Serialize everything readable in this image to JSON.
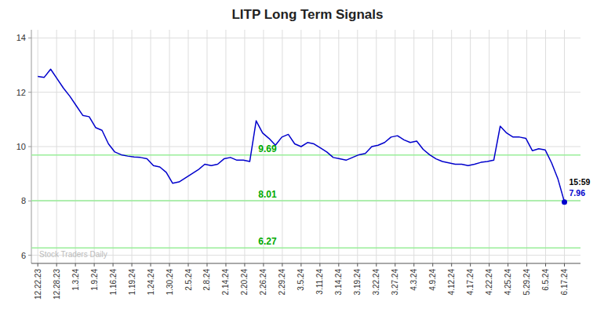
{
  "chart_data": {
    "type": "line",
    "title": "LITP Long Term Signals",
    "color": "#0000cc",
    "marker": "circle",
    "grid": true,
    "values": [
      12.58,
      12.55,
      12.85,
      12.5,
      12.15,
      11.85,
      11.5,
      11.15,
      11.1,
      10.7,
      10.6,
      10.1,
      9.8,
      9.7,
      9.65,
      9.62,
      9.6,
      9.55,
      9.3,
      9.25,
      9.05,
      8.65,
      8.7,
      8.85,
      9.0,
      9.15,
      9.35,
      9.3,
      9.35,
      9.55,
      9.6,
      9.5,
      9.5,
      9.45,
      10.95,
      10.5,
      10.3,
      10.05,
      10.35,
      10.45,
      10.1,
      10.0,
      10.15,
      10.1,
      9.95,
      9.8,
      9.6,
      9.55,
      9.5,
      9.6,
      9.7,
      9.75,
      10.0,
      10.05,
      10.15,
      10.35,
      10.4,
      10.25,
      10.15,
      10.2,
      9.9,
      9.7,
      9.55,
      9.45,
      9.4,
      9.35,
      9.35,
      9.3,
      9.35,
      9.42,
      9.45,
      9.5,
      10.75,
      10.5,
      10.35,
      10.35,
      10.3,
      9.85,
      9.92,
      9.88,
      9.4,
      8.8,
      7.96
    ],
    "xlim": [
      -1,
      84.5
    ],
    "xticks": [
      {
        "value": 0,
        "label": "12.22.23"
      },
      {
        "value": 2.928571,
        "label": "12.28.23"
      },
      {
        "value": 5.857143,
        "label": "1.3.24"
      },
      {
        "value": 8.785714,
        "label": "1.9.24"
      },
      {
        "value": 11.714286,
        "label": "1.16.24"
      },
      {
        "value": 14.642857,
        "label": "1.19.24"
      },
      {
        "value": 17.571429,
        "label": "1.24.24"
      },
      {
        "value": 20.5,
        "label": "1.30.24"
      },
      {
        "value": 23.428571,
        "label": "2.5.24"
      },
      {
        "value": 26.357143,
        "label": "2.8.24"
      },
      {
        "value": 29.285714,
        "label": "2.14.24"
      },
      {
        "value": 32.214286,
        "label": "2.20.24"
      },
      {
        "value": 35.142857,
        "label": "2.26.24"
      },
      {
        "value": 38.071429,
        "label": "2.29.24"
      },
      {
        "value": 41,
        "label": "3.5.24"
      },
      {
        "value": 43.928571,
        "label": "3.11.24"
      },
      {
        "value": 46.857143,
        "label": "3.14.24"
      },
      {
        "value": 49.785714,
        "label": "3.19.24"
      },
      {
        "value": 52.714286,
        "label": "3.22.24"
      },
      {
        "value": 55.642857,
        "label": "3.27.24"
      },
      {
        "value": 58.571429,
        "label": "4.3.24"
      },
      {
        "value": 61.5,
        "label": "4.9.24"
      },
      {
        "value": 64.428571,
        "label": "4.12.24"
      },
      {
        "value": 67.357143,
        "label": "4.17.24"
      },
      {
        "value": 70.285714,
        "label": "4.22.24"
      },
      {
        "value": 73.214286,
        "label": "4.25.24"
      },
      {
        "value": 76.142857,
        "label": "5.29.24"
      },
      {
        "value": 79.071429,
        "label": "6.5.24"
      },
      {
        "value": 82,
        "label": "6.17.24"
      }
    ],
    "ylim": [
      5.7,
      14.3
    ],
    "yticks": [
      6,
      8,
      10,
      12,
      14
    ],
    "hlines": [
      {
        "value": 9.69,
        "label": "9.69",
        "color": "#99ee99",
        "label_color": "#00aa00"
      },
      {
        "value": 8.01,
        "label": "8.01",
        "color": "#99ee99",
        "label_color": "#00aa00"
      },
      {
        "value": 6.27,
        "label": "6.27",
        "color": "#99ee99",
        "label_color": "#00aa00"
      }
    ],
    "annotations": [
      {
        "text": "15:59",
        "color": "#000000"
      },
      {
        "text": "7.96",
        "color": "#0000cc"
      }
    ],
    "watermark": {
      "text": "Stock Traders Daily",
      "color": "#bbbbbb"
    }
  }
}
